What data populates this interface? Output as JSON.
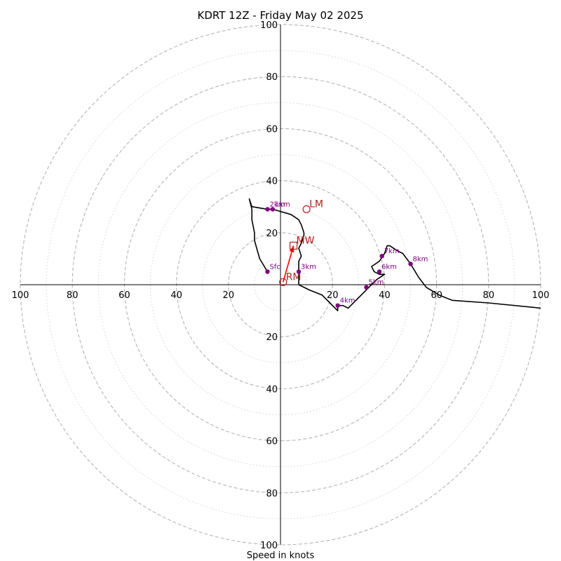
{
  "chart_data": {
    "type": "hodograph",
    "title": "KDRT 12Z - Friday May 02 2025",
    "xlabel": "Speed in knots",
    "range": [
      -100,
      100
    ],
    "rings": [
      10,
      20,
      30,
      40,
      50,
      60,
      70,
      80,
      90,
      100
    ],
    "major_rings": [
      20,
      40,
      60,
      80,
      100
    ],
    "axis_ticks": [
      {
        "value": 100,
        "label": "100"
      },
      {
        "value": 80,
        "label": "80"
      },
      {
        "value": 60,
        "label": "60"
      },
      {
        "value": 40,
        "label": "40"
      },
      {
        "value": 20,
        "label": "20"
      }
    ],
    "trace_color": "#000000",
    "height_color": "#800080",
    "motion_color": "#b22222",
    "shear_color": "#ff0000",
    "trace": [
      [
        -5,
        5
      ],
      [
        -8,
        10
      ],
      [
        -10,
        17
      ],
      [
        -10,
        20
      ],
      [
        -11,
        25
      ],
      [
        -11,
        29
      ],
      [
        -12,
        33
      ],
      [
        -11,
        30
      ],
      [
        -5,
        29
      ],
      [
        -3,
        29
      ],
      [
        4,
        27
      ],
      [
        7,
        25
      ],
      [
        8,
        23
      ],
      [
        9,
        20
      ],
      [
        9,
        19
      ],
      [
        8,
        16
      ],
      [
        7,
        14
      ],
      [
        8,
        11
      ],
      [
        7,
        9
      ],
      [
        7,
        6
      ],
      [
        7,
        5
      ],
      [
        7,
        3
      ],
      [
        7,
        2
      ],
      [
        7,
        0
      ],
      [
        11,
        -2
      ],
      [
        16,
        -4
      ],
      [
        19,
        -7
      ],
      [
        21,
        -9
      ],
      [
        22,
        -10
      ],
      [
        22,
        -8
      ],
      [
        24,
        -8
      ],
      [
        26,
        -9
      ],
      [
        29,
        -6
      ],
      [
        33,
        -2
      ],
      [
        34,
        -1
      ],
      [
        37,
        2
      ],
      [
        40,
        4
      ],
      [
        38,
        4
      ],
      [
        36,
        5
      ],
      [
        35,
        7
      ],
      [
        38,
        9
      ],
      [
        40,
        12
      ],
      [
        41,
        15
      ],
      [
        42,
        15
      ],
      [
        45,
        13
      ],
      [
        47,
        12
      ],
      [
        50,
        8
      ],
      [
        53,
        3
      ],
      [
        56,
        -1
      ],
      [
        61,
        -4
      ],
      [
        66,
        -6
      ],
      [
        80,
        -7
      ],
      [
        100,
        -9
      ]
    ],
    "heights": [
      {
        "label": "Sfc",
        "u": -5,
        "v": 5
      },
      {
        "label": "1km",
        "u": -3,
        "v": 29
      },
      {
        "label": "2km",
        "u": -5,
        "v": 29
      },
      {
        "label": "3km",
        "u": 7,
        "v": 5
      },
      {
        "label": "4km",
        "u": 22,
        "v": -8
      },
      {
        "label": "5km",
        "u": 33,
        "v": -1
      },
      {
        "label": "6km",
        "u": 38,
        "v": 5
      },
      {
        "label": "7km",
        "u": 39,
        "v": 11
      },
      {
        "label": "8km",
        "u": 50,
        "v": 8
      }
    ],
    "storm_motions": [
      {
        "label": "LM",
        "u": 10,
        "v": 29,
        "marker": "circle"
      },
      {
        "label": "MW",
        "u": 5,
        "v": 15,
        "marker": "square"
      },
      {
        "label": "RM",
        "u": 1,
        "v": 1,
        "marker": "circle"
      }
    ],
    "shear_vector": {
      "from": [
        1,
        1
      ],
      "to": [
        5,
        15
      ]
    }
  }
}
